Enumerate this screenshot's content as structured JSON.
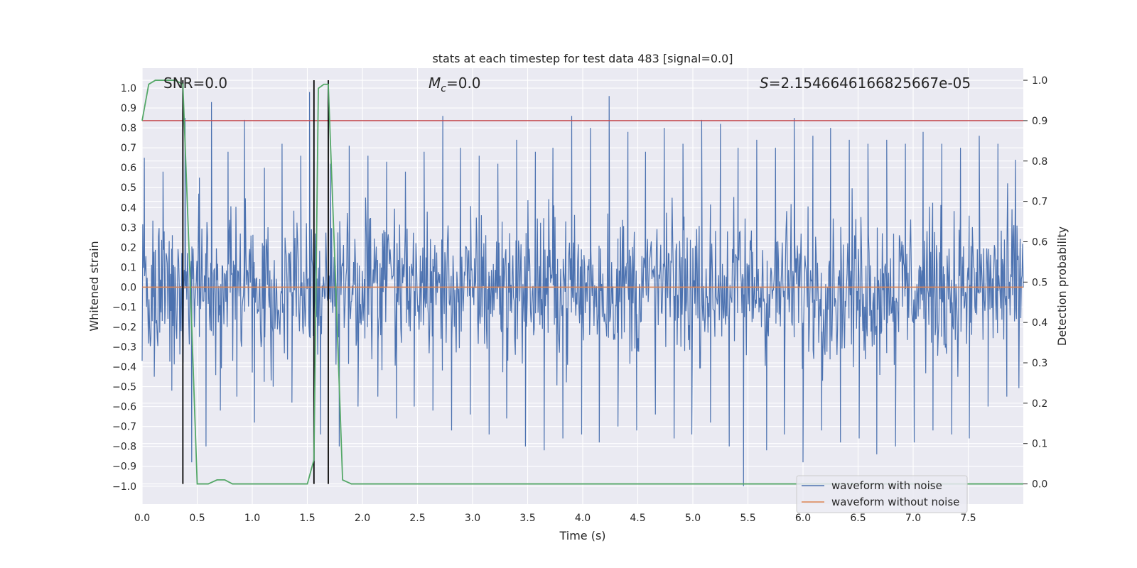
{
  "chart_data": {
    "type": "line",
    "title": "stats at each timestep for test data 483 [signal=0.0]",
    "xlabel": "Time (s)",
    "ylabel_left": "Whitened strain",
    "ylabel_right": "Detection probability",
    "xlim": [
      0.0,
      8.0
    ],
    "ylim_left": [
      -1.09,
      1.1
    ],
    "ylim_right": [
      -0.05,
      1.03
    ],
    "x_ticks": [
      0.0,
      0.5,
      1.0,
      1.5,
      2.0,
      2.5,
      3.0,
      3.5,
      4.0,
      4.5,
      5.0,
      5.5,
      6.0,
      6.5,
      7.0,
      7.5
    ],
    "x_tick_labels": [
      "0.0",
      "0.5",
      "1.0",
      "1.5",
      "2.0",
      "2.5",
      "3.0",
      "3.5",
      "4.0",
      "4.5",
      "5.0",
      "5.5",
      "6.0",
      "6.5",
      "7.0",
      "7.5"
    ],
    "y_left_ticks": [
      -1.0,
      -0.9,
      -0.8,
      -0.7,
      -0.6,
      -0.5,
      -0.4,
      -0.3,
      -0.2,
      -0.1,
      0.0,
      0.1,
      0.2,
      0.3,
      0.4,
      0.5,
      0.6,
      0.7,
      0.8,
      0.9,
      1.0
    ],
    "y_left_tick_labels": [
      "−1.0",
      "−0.9",
      "−0.8",
      "−0.7",
      "−0.6",
      "−0.5",
      "−0.4",
      "−0.3",
      "−0.2",
      "−0.1",
      "0.0",
      "0.1",
      "0.2",
      "0.3",
      "0.4",
      "0.5",
      "0.6",
      "0.7",
      "0.8",
      "0.9",
      "1.0"
    ],
    "y_right_ticks": [
      0.0,
      0.1,
      0.2,
      0.3,
      0.4,
      0.5,
      0.6,
      0.7,
      0.8,
      0.9,
      1.0
    ],
    "y_right_tick_labels": [
      "0.0",
      "0.1",
      "0.2",
      "0.3",
      "0.4",
      "0.5",
      "0.6",
      "0.7",
      "0.8",
      "0.9",
      "1.0"
    ],
    "annotations": {
      "snr": "SNR=0.0",
      "mc_symbol": "M",
      "mc_sub": "c",
      "mc_value": "=0.0",
      "s_symbol": "S",
      "s_value": "=2.1546646166825667e-05"
    },
    "series": [
      {
        "name": "waveform with noise",
        "axis": "left",
        "color": "#4c72b0",
        "kind": "noise",
        "envelope": 0.48,
        "spike_times": [
          0.02,
          0.11,
          0.19,
          0.27,
          0.39,
          0.45,
          0.52,
          0.58,
          0.63,
          0.71,
          0.78,
          0.86,
          0.93,
          1.02,
          1.11,
          1.19,
          1.27,
          1.36,
          1.44,
          1.52,
          1.62,
          1.71,
          1.79,
          1.88,
          1.96,
          2.05,
          2.14,
          2.22,
          2.31,
          2.39,
          2.47,
          2.56,
          2.64,
          2.73,
          2.81,
          2.89,
          2.98,
          3.06,
          3.15,
          3.23,
          3.31,
          3.4,
          3.48,
          3.57,
          3.65,
          3.73,
          3.82,
          3.9,
          3.99,
          4.07,
          4.15,
          4.24,
          4.32,
          4.41,
          4.49,
          4.57,
          4.66,
          4.74,
          4.83,
          4.91,
          4.99,
          5.08,
          5.16,
          5.25,
          5.33,
          5.41,
          5.46,
          5.58,
          5.67,
          5.75,
          5.83,
          5.92,
          6.0,
          6.09,
          6.17,
          6.25,
          6.34,
          6.42,
          6.51,
          6.59,
          6.67,
          6.76,
          6.84,
          6.93,
          7.01,
          7.09,
          7.18,
          7.26,
          7.35,
          7.43,
          7.51,
          7.6,
          7.68,
          7.77,
          7.85,
          7.93
        ],
        "spike_values": [
          0.65,
          -0.45,
          0.58,
          -0.52,
          0.85,
          -0.88,
          0.55,
          -0.8,
          0.93,
          -0.62,
          0.68,
          -0.55,
          0.84,
          -0.68,
          0.6,
          -0.5,
          0.72,
          -0.58,
          0.66,
          0.98,
          -0.74,
          0.62,
          -0.8,
          0.71,
          -0.6,
          0.66,
          -0.55,
          0.63,
          -0.66,
          0.58,
          -0.6,
          0.68,
          -0.62,
          0.86,
          -0.72,
          0.7,
          -0.64,
          0.66,
          -0.74,
          0.62,
          -0.66,
          0.74,
          -0.8,
          0.68,
          -0.82,
          0.7,
          -0.76,
          0.86,
          -0.74,
          0.8,
          -0.78,
          0.96,
          -0.7,
          0.78,
          -0.72,
          0.68,
          -0.64,
          0.8,
          -0.76,
          0.72,
          -0.74,
          0.84,
          -0.68,
          0.82,
          -0.8,
          0.7,
          -1.0,
          0.74,
          -0.82,
          0.7,
          -0.74,
          0.85,
          -0.88,
          0.76,
          -0.72,
          0.8,
          -0.78,
          0.74,
          -0.76,
          0.72,
          -0.84,
          0.74,
          -0.8,
          0.72,
          -0.78,
          0.78,
          -0.72,
          0.72,
          -0.74,
          0.7,
          -0.76,
          0.76,
          -0.6,
          0.72,
          -0.55,
          0.64
        ]
      },
      {
        "name": "waveform without noise",
        "axis": "left",
        "color": "#dd8452",
        "x": [
          0.0,
          8.0
        ],
        "y": [
          0.0,
          0.0
        ]
      },
      {
        "name": "detection probability",
        "axis": "right",
        "color": "#55a868",
        "x": [
          0.0,
          0.06,
          0.12,
          0.2,
          0.3,
          0.37,
          0.43,
          0.5,
          0.6,
          0.68,
          0.75,
          0.82,
          1.0,
          1.5,
          1.56,
          1.6,
          1.65,
          1.69,
          1.75,
          1.82,
          1.9,
          2.5,
          8.0
        ],
        "y": [
          0.9,
          0.99,
          1.0,
          1.0,
          1.0,
          0.99,
          0.55,
          0.0,
          0.0,
          0.01,
          0.01,
          0.0,
          0.0,
          0.0,
          0.06,
          0.98,
          0.99,
          0.99,
          0.55,
          0.01,
          0.0,
          0.0,
          0.0
        ]
      },
      {
        "name": "threshold",
        "axis": "right",
        "color": "#c44e52",
        "x": [
          0.0,
          8.0
        ],
        "y": [
          0.9,
          0.9
        ]
      }
    ],
    "vlines": {
      "color": "#000000",
      "x": [
        0.37,
        1.56,
        1.69
      ],
      "ymin_right": 0.0,
      "ymax_right": 1.0
    },
    "legend": {
      "placement": "lower-right",
      "entries": [
        {
          "label": "waveform with noise",
          "color": "#4c72b0"
        },
        {
          "label": "waveform without noise",
          "color": "#dd8452"
        }
      ]
    },
    "style": {
      "plot_background": "#eaeaf2",
      "grid_color": "#ffffff",
      "grid": true
    }
  }
}
